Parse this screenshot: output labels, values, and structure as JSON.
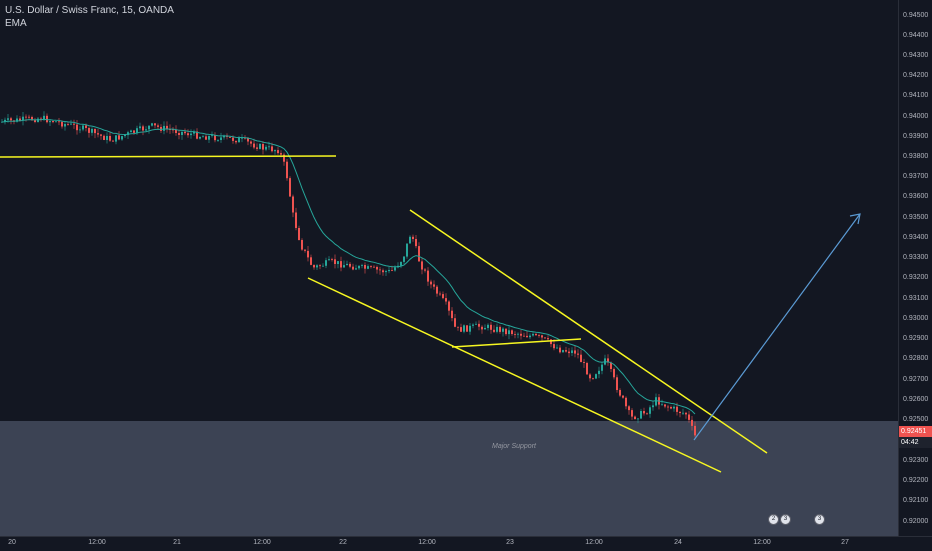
{
  "header": {
    "title": "U.S. Dollar / Swiss Franc, 15, OANDA",
    "indicator": "EMA"
  },
  "colors": {
    "background": "#131722",
    "candle_up": "#26a69a",
    "candle_down": "#ef5350",
    "ema": "#26a69a",
    "trendline": "#f7f721",
    "projection_arrow": "#5b9bd5",
    "support_zone": "#3c4354",
    "price_tag_current": "#ef5350",
    "price_tag_countdown": "#1e222d"
  },
  "price_axis": {
    "ticks": [
      "0.94500",
      "0.94400",
      "0.94300",
      "0.94200",
      "0.94100",
      "0.94000",
      "0.93900",
      "0.93800",
      "0.93700",
      "0.93600",
      "0.93500",
      "0.93400",
      "0.93300",
      "0.93200",
      "0.93100",
      "0.93000",
      "0.92900",
      "0.92800",
      "0.92700",
      "0.92600",
      "0.92500",
      "0.92300",
      "0.92200",
      "0.92100",
      "0.92000"
    ],
    "current_price": "0.92451",
    "countdown": "04:42"
  },
  "time_axis": {
    "labels": [
      "20",
      "12:00",
      "21",
      "12:00",
      "22",
      "12:00",
      "23",
      "12:00",
      "24",
      "12:00",
      "27"
    ]
  },
  "annotations": {
    "support_label": "Major Support",
    "events": [
      {
        "icon": "calendar-event-icon",
        "count": "2"
      },
      {
        "icon": "calendar-event-icon",
        "count": "3"
      },
      {
        "icon": "calendar-event-icon",
        "count": "3"
      }
    ]
  },
  "chart_data": {
    "type": "line",
    "title": "U.S. Dollar / Swiss Franc, 15, OANDA",
    "instrument": "USD/CHF",
    "timeframe": "15",
    "ylim": [
      0.9195,
      0.9459
    ],
    "x": [
      "20",
      "12:00",
      "21",
      "12:00",
      "22",
      "12:00",
      "23",
      "12:00",
      "24",
      "12:00",
      "27"
    ],
    "series": [
      {
        "name": "",
        "approx_close_at_labels": [
          0.9399,
          0.9393,
          0.9392,
          0.9388,
          0.9325,
          0.9321,
          0.9301,
          0.9288,
          0.9248,
          null,
          null
        ]
      }
    ],
    "support_zone": [
      0.9219,
      0.9251
    ],
    "support_label": "Major Support",
    "last_price": 0.92451
  }
}
